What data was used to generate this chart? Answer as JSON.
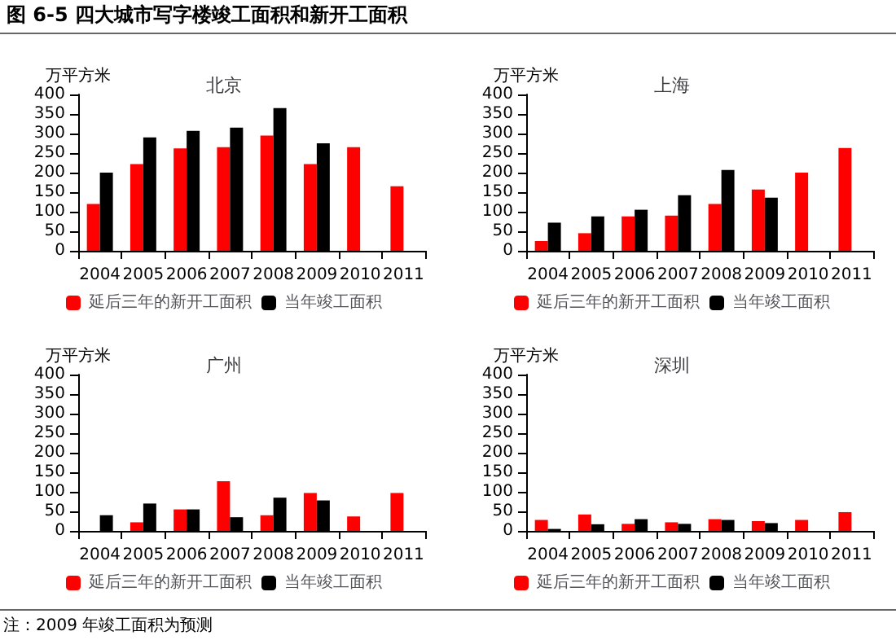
{
  "chart_data": [
    {
      "type": "bar",
      "title": "北京",
      "ylabel": "万平方米",
      "annotations": [
        "图 6-5 四大城市写字楼竣工面积和新开工面积"
      ],
      "categories": [
        "2004",
        "2005",
        "2006",
        "2007",
        "2008",
        "2009",
        "2010",
        "2011"
      ],
      "series": [
        {
          "name": "延后三年的新开工面积",
          "color": "#ff0000",
          "values": [
            120,
            222,
            262,
            265,
            295,
            222,
            265,
            165
          ]
        },
        {
          "name": "当年竣工面积",
          "color": "#000000",
          "values": [
            200,
            290,
            307,
            315,
            365,
            275,
            null,
            null
          ]
        }
      ],
      "ylim": [
        0,
        400
      ],
      "yticks": [
        0,
        50,
        100,
        150,
        200,
        250,
        300,
        350,
        400
      ],
      "grid": false,
      "legend": "bottom"
    },
    {
      "type": "bar",
      "title": "上海",
      "ylabel": "万平方米",
      "categories": [
        "2004",
        "2005",
        "2006",
        "2007",
        "2008",
        "2009",
        "2010",
        "2011"
      ],
      "series": [
        {
          "name": "延后三年的新开工面积",
          "color": "#ff0000",
          "values": [
            25,
            45,
            88,
            90,
            120,
            157,
            200,
            263
          ]
        },
        {
          "name": "当年竣工面积",
          "color": "#000000",
          "values": [
            72,
            88,
            105,
            142,
            207,
            136,
            null,
            null
          ]
        }
      ],
      "ylim": [
        0,
        400
      ],
      "yticks": [
        0,
        50,
        100,
        150,
        200,
        250,
        300,
        350,
        400
      ],
      "grid": false,
      "legend": "bottom"
    },
    {
      "type": "bar",
      "title": "广州",
      "ylabel": "万平方米",
      "annotations": [
        "注：2009 年竣工面积为预测"
      ],
      "categories": [
        "2004",
        "2005",
        "2006",
        "2007",
        "2008",
        "2009",
        "2010",
        "2011"
      ],
      "series": [
        {
          "name": "延后三年的新开工面积",
          "color": "#ff0000",
          "values": [
            null,
            22,
            55,
            127,
            40,
            97,
            37,
            97
          ]
        },
        {
          "name": "当年竣工面积",
          "color": "#000000",
          "values": [
            40,
            70,
            55,
            35,
            85,
            78,
            null,
            null
          ]
        }
      ],
      "ylim": [
        0,
        400
      ],
      "yticks": [
        0,
        50,
        100,
        150,
        200,
        250,
        300,
        350,
        400
      ],
      "grid": false,
      "legend": "bottom"
    },
    {
      "type": "bar",
      "title": "深圳",
      "ylabel": "万平方米",
      "categories": [
        "2004",
        "2005",
        "2006",
        "2007",
        "2008",
        "2009",
        "2010",
        "2011"
      ],
      "series": [
        {
          "name": "延后三年的新开工面积",
          "color": "#ff0000",
          "values": [
            28,
            42,
            18,
            22,
            30,
            25,
            28,
            48
          ]
        },
        {
          "name": "当年竣工面积",
          "color": "#000000",
          "values": [
            5,
            17,
            30,
            18,
            28,
            20,
            null,
            null
          ]
        }
      ],
      "ylim": [
        0,
        400
      ],
      "yticks": [
        0,
        50,
        100,
        150,
        200,
        250,
        300,
        350,
        400
      ],
      "grid": false,
      "legend": "bottom"
    }
  ]
}
